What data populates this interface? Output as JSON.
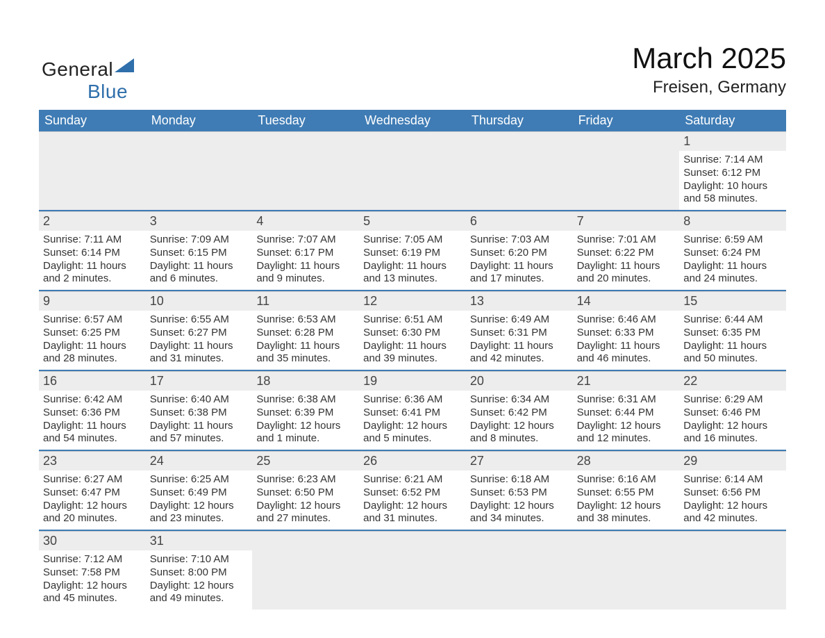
{
  "logo": {
    "word1": "General",
    "word2": "Blue"
  },
  "title": "March 2025",
  "subtitle": "Freisen, Germany",
  "colors": {
    "header_bg": "#3f7cb5",
    "rule": "#3f7cb5",
    "daybg": "#ededed"
  },
  "daynames": [
    "Sunday",
    "Monday",
    "Tuesday",
    "Wednesday",
    "Thursday",
    "Friday",
    "Saturday"
  ],
  "weeks": [
    [
      {
        "empty": true
      },
      {
        "empty": true
      },
      {
        "empty": true
      },
      {
        "empty": true
      },
      {
        "empty": true
      },
      {
        "empty": true
      },
      {
        "n": "1",
        "sr": "Sunrise: 7:14 AM",
        "ss": "Sunset: 6:12 PM",
        "d1": "Daylight: 10 hours",
        "d2": "and 58 minutes."
      }
    ],
    [
      {
        "n": "2",
        "sr": "Sunrise: 7:11 AM",
        "ss": "Sunset: 6:14 PM",
        "d1": "Daylight: 11 hours",
        "d2": "and 2 minutes."
      },
      {
        "n": "3",
        "sr": "Sunrise: 7:09 AM",
        "ss": "Sunset: 6:15 PM",
        "d1": "Daylight: 11 hours",
        "d2": "and 6 minutes."
      },
      {
        "n": "4",
        "sr": "Sunrise: 7:07 AM",
        "ss": "Sunset: 6:17 PM",
        "d1": "Daylight: 11 hours",
        "d2": "and 9 minutes."
      },
      {
        "n": "5",
        "sr": "Sunrise: 7:05 AM",
        "ss": "Sunset: 6:19 PM",
        "d1": "Daylight: 11 hours",
        "d2": "and 13 minutes."
      },
      {
        "n": "6",
        "sr": "Sunrise: 7:03 AM",
        "ss": "Sunset: 6:20 PM",
        "d1": "Daylight: 11 hours",
        "d2": "and 17 minutes."
      },
      {
        "n": "7",
        "sr": "Sunrise: 7:01 AM",
        "ss": "Sunset: 6:22 PM",
        "d1": "Daylight: 11 hours",
        "d2": "and 20 minutes."
      },
      {
        "n": "8",
        "sr": "Sunrise: 6:59 AM",
        "ss": "Sunset: 6:24 PM",
        "d1": "Daylight: 11 hours",
        "d2": "and 24 minutes."
      }
    ],
    [
      {
        "n": "9",
        "sr": "Sunrise: 6:57 AM",
        "ss": "Sunset: 6:25 PM",
        "d1": "Daylight: 11 hours",
        "d2": "and 28 minutes."
      },
      {
        "n": "10",
        "sr": "Sunrise: 6:55 AM",
        "ss": "Sunset: 6:27 PM",
        "d1": "Daylight: 11 hours",
        "d2": "and 31 minutes."
      },
      {
        "n": "11",
        "sr": "Sunrise: 6:53 AM",
        "ss": "Sunset: 6:28 PM",
        "d1": "Daylight: 11 hours",
        "d2": "and 35 minutes."
      },
      {
        "n": "12",
        "sr": "Sunrise: 6:51 AM",
        "ss": "Sunset: 6:30 PM",
        "d1": "Daylight: 11 hours",
        "d2": "and 39 minutes."
      },
      {
        "n": "13",
        "sr": "Sunrise: 6:49 AM",
        "ss": "Sunset: 6:31 PM",
        "d1": "Daylight: 11 hours",
        "d2": "and 42 minutes."
      },
      {
        "n": "14",
        "sr": "Sunrise: 6:46 AM",
        "ss": "Sunset: 6:33 PM",
        "d1": "Daylight: 11 hours",
        "d2": "and 46 minutes."
      },
      {
        "n": "15",
        "sr": "Sunrise: 6:44 AM",
        "ss": "Sunset: 6:35 PM",
        "d1": "Daylight: 11 hours",
        "d2": "and 50 minutes."
      }
    ],
    [
      {
        "n": "16",
        "sr": "Sunrise: 6:42 AM",
        "ss": "Sunset: 6:36 PM",
        "d1": "Daylight: 11 hours",
        "d2": "and 54 minutes."
      },
      {
        "n": "17",
        "sr": "Sunrise: 6:40 AM",
        "ss": "Sunset: 6:38 PM",
        "d1": "Daylight: 11 hours",
        "d2": "and 57 minutes."
      },
      {
        "n": "18",
        "sr": "Sunrise: 6:38 AM",
        "ss": "Sunset: 6:39 PM",
        "d1": "Daylight: 12 hours",
        "d2": "and 1 minute."
      },
      {
        "n": "19",
        "sr": "Sunrise: 6:36 AM",
        "ss": "Sunset: 6:41 PM",
        "d1": "Daylight: 12 hours",
        "d2": "and 5 minutes."
      },
      {
        "n": "20",
        "sr": "Sunrise: 6:34 AM",
        "ss": "Sunset: 6:42 PM",
        "d1": "Daylight: 12 hours",
        "d2": "and 8 minutes."
      },
      {
        "n": "21",
        "sr": "Sunrise: 6:31 AM",
        "ss": "Sunset: 6:44 PM",
        "d1": "Daylight: 12 hours",
        "d2": "and 12 minutes."
      },
      {
        "n": "22",
        "sr": "Sunrise: 6:29 AM",
        "ss": "Sunset: 6:46 PM",
        "d1": "Daylight: 12 hours",
        "d2": "and 16 minutes."
      }
    ],
    [
      {
        "n": "23",
        "sr": "Sunrise: 6:27 AM",
        "ss": "Sunset: 6:47 PM",
        "d1": "Daylight: 12 hours",
        "d2": "and 20 minutes."
      },
      {
        "n": "24",
        "sr": "Sunrise: 6:25 AM",
        "ss": "Sunset: 6:49 PM",
        "d1": "Daylight: 12 hours",
        "d2": "and 23 minutes."
      },
      {
        "n": "25",
        "sr": "Sunrise: 6:23 AM",
        "ss": "Sunset: 6:50 PM",
        "d1": "Daylight: 12 hours",
        "d2": "and 27 minutes."
      },
      {
        "n": "26",
        "sr": "Sunrise: 6:21 AM",
        "ss": "Sunset: 6:52 PM",
        "d1": "Daylight: 12 hours",
        "d2": "and 31 minutes."
      },
      {
        "n": "27",
        "sr": "Sunrise: 6:18 AM",
        "ss": "Sunset: 6:53 PM",
        "d1": "Daylight: 12 hours",
        "d2": "and 34 minutes."
      },
      {
        "n": "28",
        "sr": "Sunrise: 6:16 AM",
        "ss": "Sunset: 6:55 PM",
        "d1": "Daylight: 12 hours",
        "d2": "and 38 minutes."
      },
      {
        "n": "29",
        "sr": "Sunrise: 6:14 AM",
        "ss": "Sunset: 6:56 PM",
        "d1": "Daylight: 12 hours",
        "d2": "and 42 minutes."
      }
    ],
    [
      {
        "n": "30",
        "sr": "Sunrise: 7:12 AM",
        "ss": "Sunset: 7:58 PM",
        "d1": "Daylight: 12 hours",
        "d2": "and 45 minutes."
      },
      {
        "n": "31",
        "sr": "Sunrise: 7:10 AM",
        "ss": "Sunset: 8:00 PM",
        "d1": "Daylight: 12 hours",
        "d2": "and 49 minutes."
      },
      {
        "empty": true
      },
      {
        "empty": true
      },
      {
        "empty": true
      },
      {
        "empty": true
      },
      {
        "empty": true
      }
    ]
  ]
}
